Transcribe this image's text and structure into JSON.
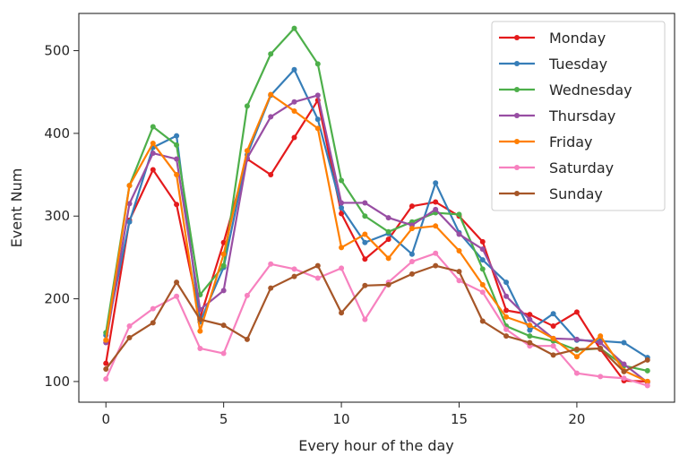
{
  "chart_data": {
    "type": "line",
    "title": "",
    "xlabel": "Every hour of the day",
    "ylabel": "Event Num",
    "x": [
      0,
      1,
      2,
      3,
      4,
      5,
      6,
      7,
      8,
      9,
      10,
      11,
      12,
      13,
      14,
      15,
      16,
      17,
      18,
      19,
      20,
      21,
      22,
      23
    ],
    "xlim": [
      -1.15,
      24.15
    ],
    "ylim": [
      75,
      545
    ],
    "xticks": [
      0,
      5,
      10,
      15,
      20
    ],
    "yticks": [
      100,
      200,
      300,
      400,
      500
    ],
    "grid": false,
    "legend_position": "top-right",
    "series": [
      {
        "name": "Monday",
        "color": "#e41a1c",
        "values": [
          122,
          295,
          356,
          314,
          177,
          268,
          369,
          350,
          395,
          440,
          303,
          248,
          272,
          312,
          317,
          300,
          269,
          186,
          181,
          167,
          184,
          139,
          101,
          100
        ]
      },
      {
        "name": "Tuesday",
        "color": "#377eb8",
        "values": [
          156,
          293,
          383,
          397,
          172,
          238,
          374,
          446,
          477,
          417,
          310,
          268,
          279,
          254,
          340,
          280,
          247,
          220,
          162,
          182,
          150,
          149,
          147,
          129
        ]
      },
      {
        "name": "Wednesday",
        "color": "#4daf4a",
        "values": [
          159,
          337,
          408,
          386,
          205,
          240,
          433,
          496,
          527,
          484,
          343,
          300,
          281,
          293,
          304,
          302,
          236,
          167,
          155,
          149,
          138,
          140,
          119,
          113
        ]
      },
      {
        "name": "Thursday",
        "color": "#984ea3",
        "values": [
          147,
          315,
          376,
          369,
          187,
          210,
          370,
          420,
          438,
          446,
          316,
          316,
          298,
          289,
          308,
          278,
          260,
          203,
          175,
          152,
          151,
          147,
          121,
          99
        ]
      },
      {
        "name": "Friday",
        "color": "#ff7f00",
        "values": [
          150,
          337,
          388,
          350,
          161,
          254,
          379,
          447,
          427,
          406,
          262,
          278,
          249,
          285,
          288,
          258,
          217,
          178,
          168,
          152,
          130,
          155,
          113,
          100
        ]
      },
      {
        "name": "Saturday",
        "color": "#f781bf",
        "values": [
          103,
          167,
          188,
          203,
          140,
          134,
          204,
          242,
          236,
          225,
          237,
          175,
          220,
          245,
          255,
          222,
          208,
          163,
          143,
          143,
          110,
          106,
          104,
          95
        ]
      },
      {
        "name": "Sunday",
        "color": "#a65628",
        "values": [
          115,
          153,
          171,
          220,
          175,
          168,
          151,
          213,
          227,
          240,
          183,
          216,
          217,
          230,
          240,
          233,
          173,
          155,
          147,
          132,
          139,
          140,
          112,
          126
        ]
      }
    ]
  }
}
